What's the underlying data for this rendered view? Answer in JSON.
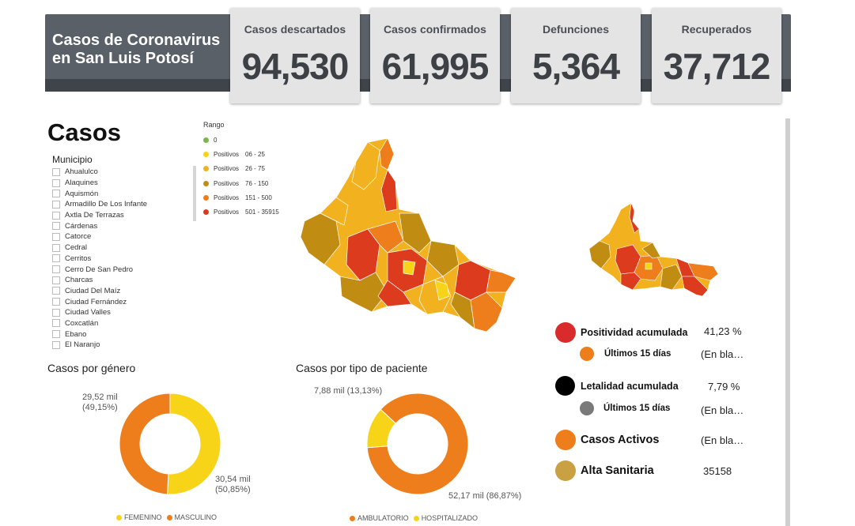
{
  "header": {
    "title_line1": "Casos de Coronavirus",
    "title_line2": "en San Luis Potosí",
    "stats": [
      {
        "label": "Casos descartados",
        "value": "94,530"
      },
      {
        "label": "Casos confirmados",
        "value": "61,995"
      },
      {
        "label": "Defunciones",
        "value": "5,364"
      },
      {
        "label": "Recuperados",
        "value": "37,712"
      }
    ]
  },
  "section_title": "Casos",
  "municipio": {
    "heading": "Municipio",
    "items": [
      "Ahualulco",
      "Alaquines",
      "Aquismón",
      "Armadillo De Los Infante",
      "Axtla De Terrazas",
      "Cárdenas",
      "Catorce",
      "Cedral",
      "Cerritos",
      "Cerro De San Pedro",
      "Charcas",
      "Ciudad Del Maíz",
      "Ciudad Fernández",
      "Ciudad Valles",
      "Coxcatlán",
      "Ebano",
      "El Naranjo"
    ]
  },
  "rango": {
    "title": "Rango",
    "items": [
      {
        "label": "0",
        "range": "",
        "color": "#7ab648"
      },
      {
        "label": "Positivos",
        "range": "06 - 25",
        "color": "#f7d417"
      },
      {
        "label": "Positivos",
        "range": "26 - 75",
        "color": "#f2b21f"
      },
      {
        "label": "Positivos",
        "range": "76 - 150",
        "color": "#c08c12"
      },
      {
        "label": "Positivos",
        "range": "151 - 500",
        "color": "#ee7d1b"
      },
      {
        "label": "Positivos",
        "range": "501 - 35915",
        "color": "#dc3b1e"
      }
    ]
  },
  "gender_chart": {
    "title": "Casos por género",
    "label_femenino_1": "30,54 mil",
    "label_femenino_2": "(50,85%)",
    "label_masculino_1": "29,52 mil",
    "label_masculino_2": "(49,15%)",
    "legend": [
      "FEMENINO",
      "MASCULINO"
    ]
  },
  "patient_chart": {
    "title": "Casos por tipo de paciente",
    "label_hosp": "7,88 mil (13,13%)",
    "label_amb": "52,17 mil (86,87%)",
    "legend": [
      "AMBULATORIO",
      "HOSPITALIZADO"
    ]
  },
  "kpis": {
    "positividad": {
      "label": "Positividad acumulada",
      "value": "41,23 %"
    },
    "positividad_15": {
      "label": "Últimos 15 días",
      "value": "(En bla…"
    },
    "letalidad": {
      "label": "Letalidad acumulada",
      "value": "7,79 %"
    },
    "letalidad_15": {
      "label": "Últimos 15 días",
      "value": "(En bla…"
    },
    "activos": {
      "label": "Casos Activos",
      "value": "(En bla…"
    },
    "alta": {
      "label": "Alta Sanitaria",
      "value": "35158"
    }
  },
  "colors": {
    "yellow": "#f7d417",
    "orange": "#ee7d1b",
    "red": "#dc3b1e",
    "dark_gold": "#c08c12",
    "gold": "#f2b21f",
    "kpi_red": "#d92b2b",
    "kpi_black": "#000000",
    "kpi_gray": "#7a7a7a",
    "kpi_tan": "#c9a042"
  },
  "chart_data": [
    {
      "type": "pie",
      "title": "Casos por género",
      "categories": [
        "FEMENINO",
        "MASCULINO"
      ],
      "values": [
        30.54,
        29.52
      ],
      "percents": [
        50.85,
        49.15
      ],
      "unit": "mil"
    },
    {
      "type": "pie",
      "title": "Casos por tipo de paciente",
      "categories": [
        "AMBULATORIO",
        "HOSPITALIZADO"
      ],
      "values": [
        52.17,
        7.88
      ],
      "percents": [
        86.87,
        13.13
      ],
      "unit": "mil"
    }
  ]
}
